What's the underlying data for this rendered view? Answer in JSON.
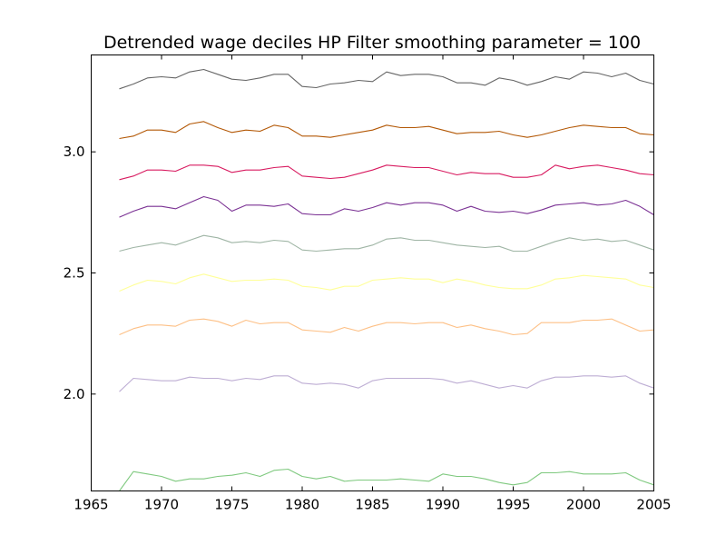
{
  "chart_data": {
    "type": "line",
    "title": "Detrended wage deciles HP Filter smoothing parameter = 100",
    "xlabel": "",
    "ylabel": "",
    "xlim": [
      1965,
      2005
    ],
    "ylim": [
      1.6,
      3.4
    ],
    "x_ticks": [
      1965,
      1970,
      1975,
      1980,
      1985,
      1990,
      1995,
      2000,
      2005
    ],
    "x_tick_labels": [
      "1965",
      "1970",
      "1975",
      "1980",
      "1985",
      "1990",
      "1995",
      "2000",
      "2005"
    ],
    "y_ticks": [
      2.0,
      2.5,
      3.0
    ],
    "y_tick_labels": [
      "2.0",
      "2.5",
      "3.0"
    ],
    "grid": false,
    "legend": "none",
    "x": [
      1967,
      1968,
      1969,
      1970,
      1971,
      1972,
      1973,
      1974,
      1975,
      1976,
      1977,
      1978,
      1979,
      1980,
      1981,
      1982,
      1983,
      1984,
      1985,
      1986,
      1987,
      1988,
      1989,
      1990,
      1991,
      1992,
      1993,
      1994,
      1995,
      1996,
      1997,
      1998,
      1999,
      2000,
      2001,
      2002,
      2003,
      2004,
      2005
    ],
    "series": [
      {
        "color": "#7fc97f",
        "values": [
          1.6,
          1.68,
          1.67,
          1.66,
          1.64,
          1.65,
          1.65,
          1.66,
          1.665,
          1.675,
          1.66,
          1.685,
          1.69,
          1.66,
          1.65,
          1.66,
          1.64,
          1.645,
          1.645,
          1.645,
          1.65,
          1.645,
          1.64,
          1.67,
          1.66,
          1.66,
          1.65,
          1.635,
          1.625,
          1.635,
          1.675,
          1.675,
          1.68,
          1.67,
          1.67,
          1.67,
          1.675,
          1.645,
          1.625
        ]
      },
      {
        "color": "#beaed4",
        "values": [
          2.01,
          2.065,
          2.06,
          2.055,
          2.055,
          2.07,
          2.065,
          2.065,
          2.055,
          2.065,
          2.06,
          2.075,
          2.075,
          2.045,
          2.04,
          2.045,
          2.04,
          2.025,
          2.055,
          2.065,
          2.065,
          2.065,
          2.065,
          2.06,
          2.045,
          2.055,
          2.04,
          2.025,
          2.035,
          2.025,
          2.055,
          2.07,
          2.07,
          2.075,
          2.075,
          2.07,
          2.075,
          2.045,
          2.025
        ]
      },
      {
        "color": "#fdc086",
        "values": [
          2.245,
          2.27,
          2.285,
          2.285,
          2.28,
          2.305,
          2.31,
          2.3,
          2.28,
          2.305,
          2.29,
          2.295,
          2.295,
          2.265,
          2.26,
          2.255,
          2.275,
          2.26,
          2.28,
          2.295,
          2.295,
          2.29,
          2.295,
          2.295,
          2.275,
          2.285,
          2.27,
          2.26,
          2.245,
          2.25,
          2.295,
          2.295,
          2.295,
          2.305,
          2.305,
          2.31,
          2.285,
          2.26,
          2.265
        ]
      },
      {
        "color": "#ffff99",
        "values": [
          2.425,
          2.45,
          2.47,
          2.465,
          2.455,
          2.48,
          2.495,
          2.48,
          2.465,
          2.47,
          2.47,
          2.475,
          2.47,
          2.445,
          2.44,
          2.43,
          2.445,
          2.445,
          2.47,
          2.475,
          2.48,
          2.475,
          2.475,
          2.46,
          2.475,
          2.465,
          2.45,
          2.44,
          2.435,
          2.435,
          2.45,
          2.475,
          2.48,
          2.49,
          2.485,
          2.48,
          2.475,
          2.45,
          2.44
        ]
      },
      {
        "color": "#9fb5a5",
        "values": [
          2.59,
          2.605,
          2.615,
          2.625,
          2.615,
          2.635,
          2.655,
          2.645,
          2.625,
          2.63,
          2.625,
          2.635,
          2.63,
          2.595,
          2.59,
          2.595,
          2.6,
          2.6,
          2.615,
          2.64,
          2.645,
          2.635,
          2.635,
          2.625,
          2.615,
          2.61,
          2.605,
          2.61,
          2.59,
          2.59,
          2.61,
          2.63,
          2.645,
          2.635,
          2.64,
          2.63,
          2.635,
          2.615,
          2.595
        ]
      },
      {
        "color": "#7b3294",
        "values": [
          2.73,
          2.755,
          2.775,
          2.775,
          2.765,
          2.79,
          2.815,
          2.8,
          2.755,
          2.78,
          2.78,
          2.775,
          2.785,
          2.745,
          2.74,
          2.74,
          2.765,
          2.755,
          2.77,
          2.79,
          2.78,
          2.79,
          2.79,
          2.78,
          2.755,
          2.775,
          2.755,
          2.75,
          2.755,
          2.745,
          2.76,
          2.78,
          2.785,
          2.79,
          2.78,
          2.785,
          2.8,
          2.775,
          2.74
        ]
      },
      {
        "color": "#d81b60",
        "values": [
          2.885,
          2.9,
          2.925,
          2.925,
          2.92,
          2.945,
          2.945,
          2.94,
          2.915,
          2.925,
          2.925,
          2.935,
          2.94,
          2.9,
          2.895,
          2.89,
          2.895,
          2.91,
          2.925,
          2.945,
          2.94,
          2.935,
          2.935,
          2.92,
          2.905,
          2.915,
          2.91,
          2.91,
          2.895,
          2.895,
          2.905,
          2.945,
          2.93,
          2.94,
          2.945,
          2.935,
          2.925,
          2.91,
          2.905
        ]
      },
      {
        "color": "#b35806",
        "values": [
          3.055,
          3.065,
          3.09,
          3.09,
          3.08,
          3.115,
          3.125,
          3.1,
          3.08,
          3.09,
          3.085,
          3.11,
          3.1,
          3.065,
          3.065,
          3.06,
          3.07,
          3.08,
          3.09,
          3.11,
          3.1,
          3.1,
          3.105,
          3.09,
          3.075,
          3.08,
          3.08,
          3.085,
          3.07,
          3.06,
          3.07,
          3.085,
          3.1,
          3.11,
          3.105,
          3.1,
          3.1,
          3.075,
          3.07
        ]
      },
      {
        "color": "#666666",
        "values": [
          3.26,
          3.28,
          3.305,
          3.31,
          3.305,
          3.33,
          3.34,
          3.32,
          3.3,
          3.295,
          3.305,
          3.32,
          3.32,
          3.27,
          3.265,
          3.28,
          3.285,
          3.295,
          3.29,
          3.33,
          3.315,
          3.32,
          3.32,
          3.31,
          3.285,
          3.285,
          3.275,
          3.305,
          3.295,
          3.275,
          3.29,
          3.31,
          3.3,
          3.33,
          3.325,
          3.31,
          3.325,
          3.295,
          3.28
        ]
      }
    ]
  }
}
